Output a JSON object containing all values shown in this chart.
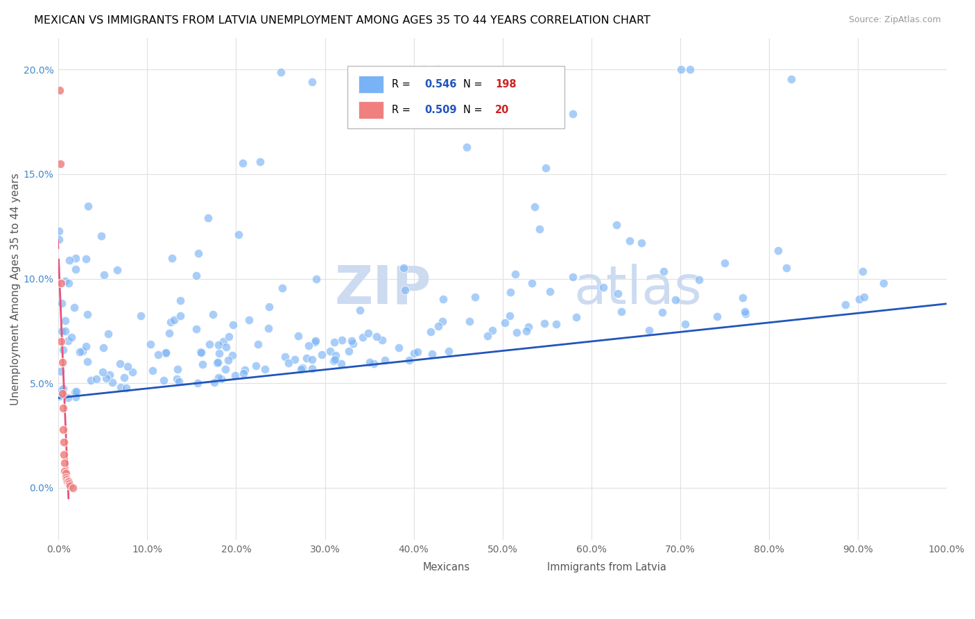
{
  "title": "MEXICAN VS IMMIGRANTS FROM LATVIA UNEMPLOYMENT AMONG AGES 35 TO 44 YEARS CORRELATION CHART",
  "source": "Source: ZipAtlas.com",
  "ylabel": "Unemployment Among Ages 35 to 44 years",
  "xlim": [
    0,
    1.0
  ],
  "ylim": [
    -0.025,
    0.215
  ],
  "xticks": [
    0.0,
    0.1,
    0.2,
    0.3,
    0.4,
    0.5,
    0.6,
    0.7,
    0.8,
    0.9,
    1.0
  ],
  "xticklabels": [
    "0.0%",
    "10.0%",
    "20.0%",
    "30.0%",
    "40.0%",
    "50.0%",
    "60.0%",
    "70.0%",
    "80.0%",
    "90.0%",
    "100.0%"
  ],
  "yticks": [
    0.0,
    0.05,
    0.1,
    0.15,
    0.2
  ],
  "yticklabels": [
    "0.0%",
    "5.0%",
    "10.0%",
    "15.0%",
    "20.0%"
  ],
  "blue_color": "#7ab3f5",
  "pink_color": "#f08080",
  "blue_line_color": "#2255bb",
  "pink_line_color": "#e8507a",
  "watermark_zip": "ZIP",
  "watermark_atlas": "atlas",
  "legend_R_blue": "0.546",
  "legend_N_blue": "198",
  "legend_R_pink": "0.509",
  "legend_N_pink": "20",
  "background_color": "#ffffff",
  "grid_color": "#e0e0e0",
  "blue_scatter_seed": 42,
  "pink_scatter_seed": 99
}
